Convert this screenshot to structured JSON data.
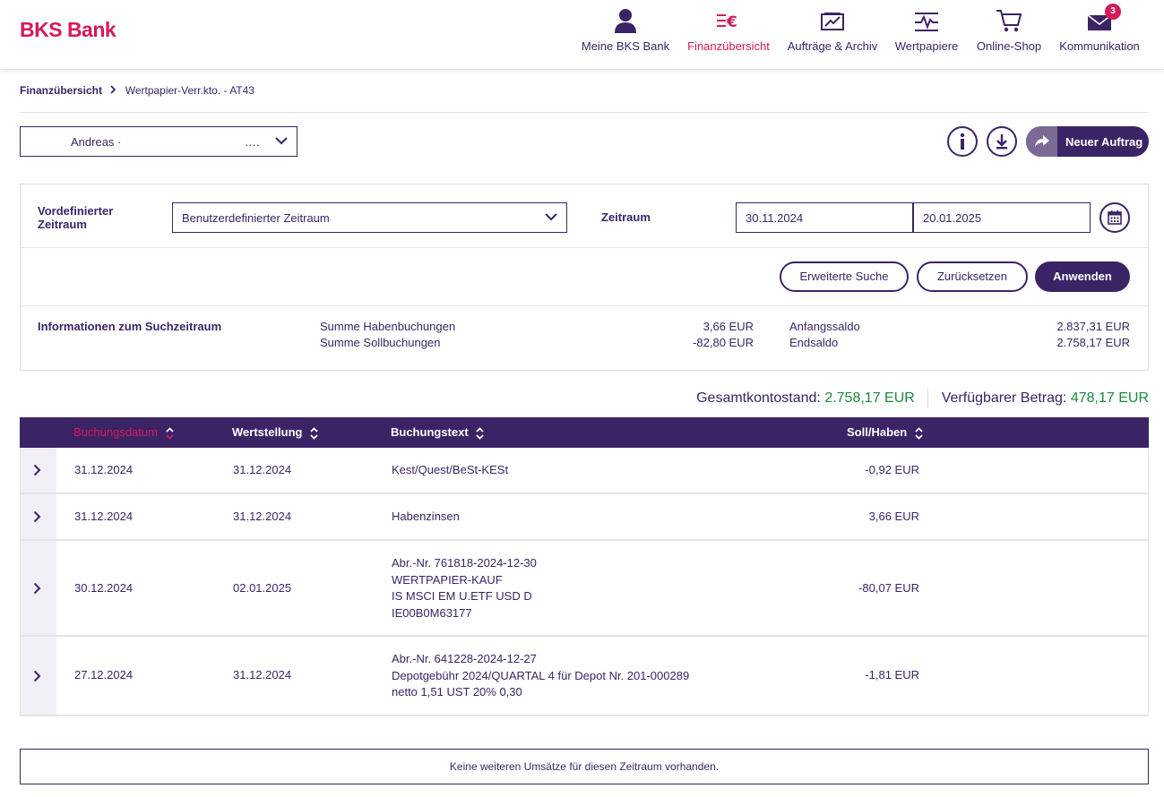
{
  "header": {
    "logo": "BKS Bank",
    "nav": [
      {
        "label": "Meine BKS Bank",
        "icon": "user-icon"
      },
      {
        "label": "Finanzübersicht",
        "icon": "finance-icon"
      },
      {
        "label": "Aufträge & Archiv",
        "icon": "archive-icon"
      },
      {
        "label": "Wertpapiere",
        "icon": "securities-icon"
      },
      {
        "label": "Online-Shop",
        "icon": "cart-icon"
      },
      {
        "label": "Kommunikation",
        "icon": "mail-icon",
        "badge": "3"
      }
    ],
    "active_color": "#d5195a"
  },
  "breadcrumb": {
    "root": "Finanzübersicht",
    "current": "Wertpapier-Verr.kto. - AT43"
  },
  "account": {
    "name": "Andreas ·",
    "masked": "…."
  },
  "actions": {
    "new_order": "Neuer Auftrag"
  },
  "filter": {
    "predefined_label": "Vordefinierter Zeitraum",
    "predefined_value": "Benutzerdefinierter Zeitraum",
    "period_label": "Zeitraum",
    "date_from": "30.11.2024",
    "date_to": "20.01.2025",
    "btn_extended": "Erweiterte Suche",
    "btn_reset": "Zurücksetzen",
    "btn_apply": "Anwenden"
  },
  "info": {
    "title": "Informationen zum Suchzeitraum",
    "credit_label": "Summe Habenbuchungen",
    "credit_value": "3,66 EUR",
    "debit_label": "Summe Sollbuchungen",
    "debit_value": "-82,80 EUR",
    "opening_label": "Anfangssaldo",
    "opening_value": "2.837,31 EUR",
    "closing_label": "Endsaldo",
    "closing_value": "2.758,17 EUR"
  },
  "totals": {
    "balance_label": "Gesamtkontostand:",
    "balance_value": "2.758,17 EUR",
    "available_label": "Verfügbarer Betrag:",
    "available_value": "478,17 EUR"
  },
  "table": {
    "headers": {
      "booking_date": "Buchungsdatum",
      "value_date": "Wertstellung",
      "text": "Buchungstext",
      "amount": "Soll/Haben"
    },
    "rows": [
      {
        "booking_date": "31.12.2024",
        "value_date": "31.12.2024",
        "text": [
          "Kest/Quest/BeSt-KESt"
        ],
        "amount": "-0,92 EUR"
      },
      {
        "booking_date": "31.12.2024",
        "value_date": "31.12.2024",
        "text": [
          "Habenzinsen"
        ],
        "amount": "3,66 EUR"
      },
      {
        "booking_date": "30.12.2024",
        "value_date": "02.01.2025",
        "text": [
          "Abr.-Nr. 761818-2024-12-30",
          "WERTPAPIER-KAUF",
          "IS MSCI EM U.ETF USD D",
          "IE00B0M63177"
        ],
        "amount": "-80,07 EUR"
      },
      {
        "booking_date": "27.12.2024",
        "value_date": "31.12.2024",
        "text": [
          "Abr.-Nr. 641228-2024-12-27",
          "Depotgebühr 2024/QUARTAL 4 für Depot Nr. 201-000289",
          "netto 1,51 UST 20% 0,30"
        ],
        "amount": "-1,81 EUR"
      }
    ]
  },
  "footer_message": "Keine weiteren Umsätze für diesen Zeitraum vorhanden."
}
